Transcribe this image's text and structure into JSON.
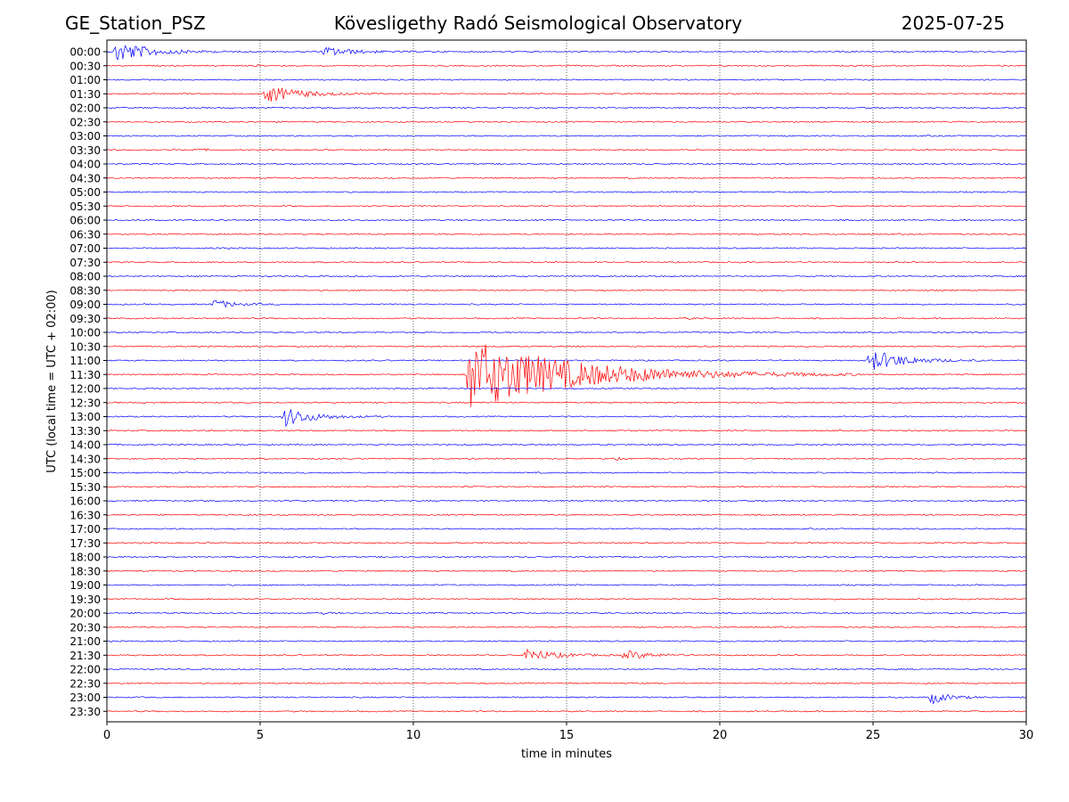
{
  "header": {
    "station": "GE_Station_PSZ",
    "observatory": "Kövesligethy Radó Seismological Observatory",
    "date": "2025-07-25"
  },
  "chart_data": {
    "type": "line",
    "title": "Kövesligethy Radó Seismological Observatory",
    "xlabel": "time in minutes",
    "ylabel": "UTC (local time = UTC + 02:00)",
    "xlim": [
      0,
      30
    ],
    "xticks": [
      "0",
      "5",
      "10",
      "15",
      "20",
      "25",
      "30"
    ],
    "grid": "vertical dotted lines at 5-minute intervals",
    "trace_colors": [
      "#0000ff",
      "#ff0000"
    ],
    "rows": [
      "00:00",
      "00:30",
      "01:00",
      "01:30",
      "02:00",
      "02:30",
      "03:00",
      "03:30",
      "04:00",
      "04:30",
      "05:00",
      "05:30",
      "06:00",
      "06:30",
      "07:00",
      "07:30",
      "08:00",
      "08:30",
      "09:00",
      "09:30",
      "10:00",
      "10:30",
      "11:00",
      "11:30",
      "12:00",
      "12:30",
      "13:00",
      "13:30",
      "14:00",
      "14:30",
      "15:00",
      "15:30",
      "16:00",
      "16:30",
      "17:00",
      "17:30",
      "18:00",
      "18:30",
      "19:00",
      "19:30",
      "20:00",
      "20:30",
      "21:00",
      "21:30",
      "22:00",
      "22:30",
      "23:00",
      "23:30"
    ],
    "events": [
      {
        "row": "00:00",
        "onset_min": 0.2,
        "amplitude": 14,
        "duration_min": 4.0
      },
      {
        "row": "00:00",
        "onset_min": 7.0,
        "amplitude": 6,
        "duration_min": 3.5
      },
      {
        "row": "00:30",
        "onset_min": 4.7,
        "amplitude": 1.5,
        "duration_min": 0.8
      },
      {
        "row": "01:30",
        "onset_min": 5.1,
        "amplitude": 11,
        "duration_min": 4.0
      },
      {
        "row": "02:00",
        "onset_min": 29.0,
        "amplitude": 2,
        "duration_min": 0.5
      },
      {
        "row": "03:30",
        "onset_min": 2.8,
        "amplitude": 2,
        "duration_min": 1.2
      },
      {
        "row": "07:00",
        "onset_min": 3.5,
        "amplitude": 1.5,
        "duration_min": 0.8
      },
      {
        "row": "09:00",
        "onset_min": 3.4,
        "amplitude": 6,
        "duration_min": 2.5
      },
      {
        "row": "09:30",
        "onset_min": 18.8,
        "amplitude": 1.5,
        "duration_min": 1.0
      },
      {
        "row": "11:00",
        "onset_min": 24.8,
        "amplitude": 14,
        "duration_min": 4.0
      },
      {
        "row": "11:30",
        "onset_min": 11.7,
        "amplitude": 42,
        "duration_min": 13.0
      },
      {
        "row": "13:00",
        "onset_min": 5.7,
        "amplitude": 12,
        "duration_min": 3.5
      },
      {
        "row": "14:30",
        "onset_min": 16.5,
        "amplitude": 1.5,
        "duration_min": 1.2
      },
      {
        "row": "20:00",
        "onset_min": 7.0,
        "amplitude": 1.5,
        "duration_min": 1.2
      },
      {
        "row": "21:30",
        "onset_min": 13.6,
        "amplitude": 8,
        "duration_min": 3.5
      },
      {
        "row": "21:30",
        "onset_min": 16.8,
        "amplitude": 6,
        "duration_min": 3.0
      },
      {
        "row": "23:00",
        "onset_min": 26.8,
        "amplitude": 9,
        "duration_min": 2.0
      }
    ]
  }
}
